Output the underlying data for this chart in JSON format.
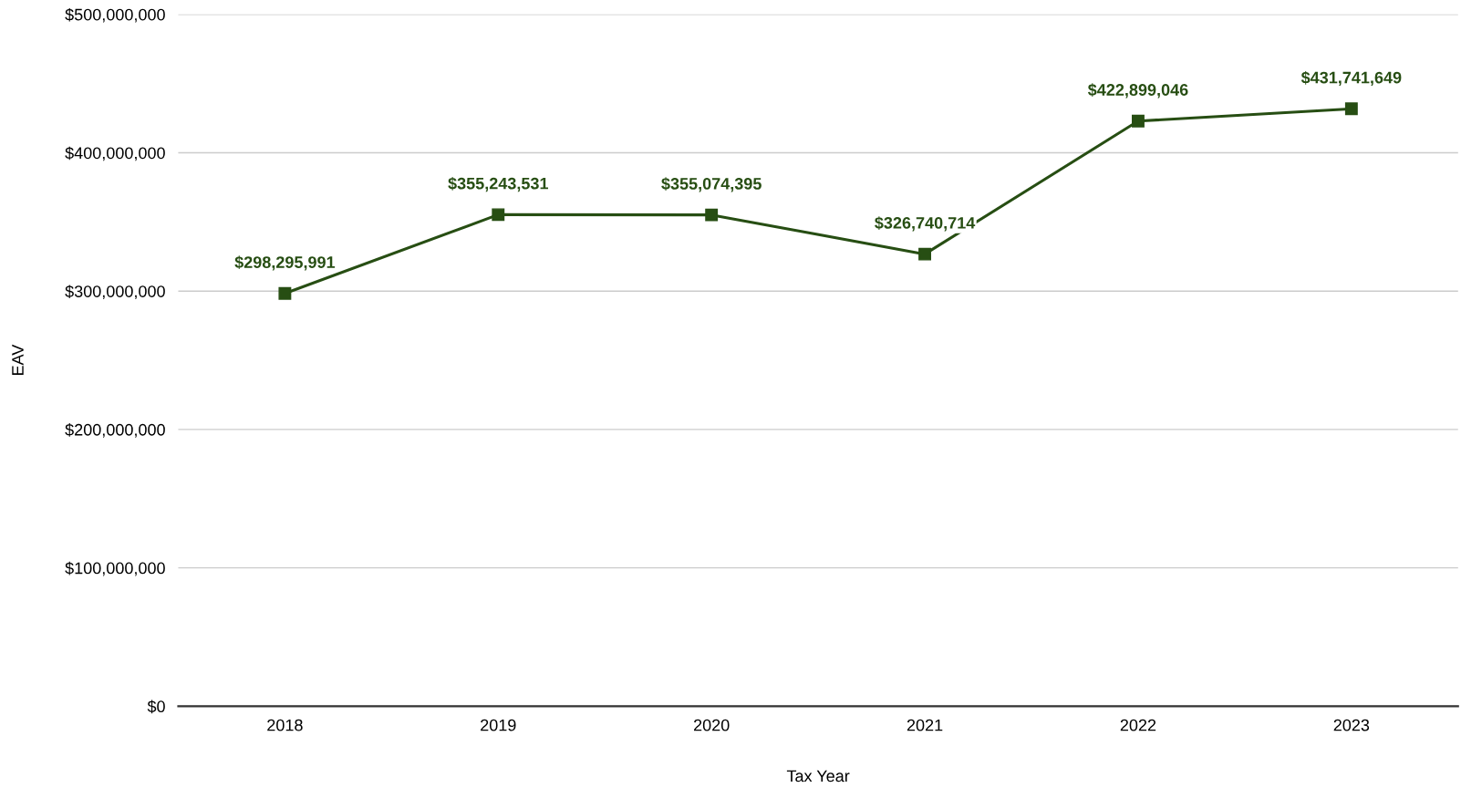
{
  "chart_data": {
    "type": "line",
    "xlabel": "Tax Year",
    "ylabel": "EAV",
    "categories": [
      "2018",
      "2019",
      "2020",
      "2021",
      "2022",
      "2023"
    ],
    "series": [
      {
        "color": "#274e13",
        "values": [
          298295991,
          355243531,
          355074395,
          326740714,
          422899046,
          431741649
        ],
        "value_labels": [
          "$298,295,991",
          "$355,243,531",
          "$355,074,395",
          "$326,740,714",
          "$422,899,046",
          "$431,741,649"
        ]
      }
    ],
    "ylim": [
      0,
      500000000
    ],
    "yticks": [
      {
        "value": 0,
        "label": "$0"
      },
      {
        "value": 100000000,
        "label": "$100,000,000"
      },
      {
        "value": 200000000,
        "label": "$200,000,000"
      },
      {
        "value": 300000000,
        "label": "$300,000,000"
      },
      {
        "value": 400000000,
        "label": "$400,000,000"
      },
      {
        "value": 500000000,
        "label": "$500,000,000"
      }
    ],
    "grid": "y",
    "marker": "square",
    "line_style": "solid"
  }
}
